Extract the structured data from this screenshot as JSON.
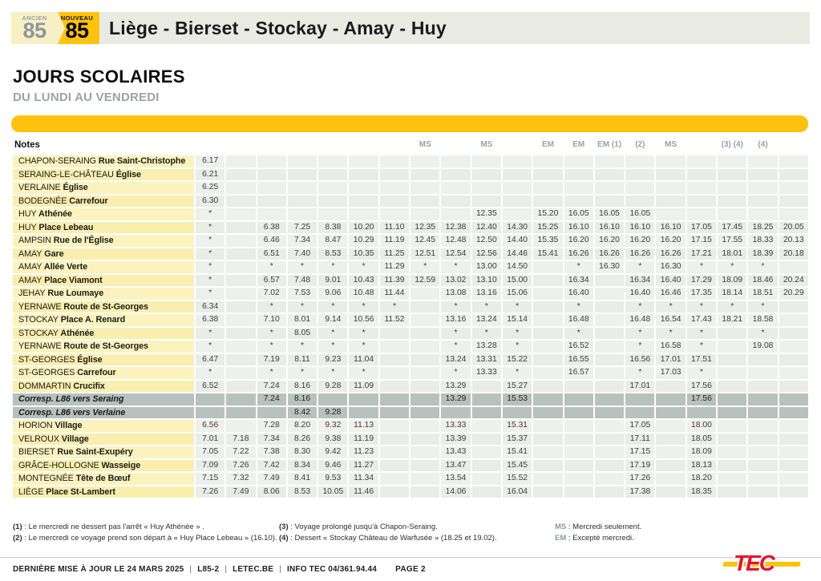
{
  "header": {
    "old_line": {
      "label": "ANCIEN",
      "number": "85"
    },
    "new_line": {
      "label": "NOUVEAU",
      "number": "85"
    },
    "route_title": "Liège - Bierset - Stockay - Amay - Huy"
  },
  "section": {
    "title": "JOURS SCOLAIRES",
    "subtitle": "DU LUNDI AU VENDREDI"
  },
  "colors": {
    "accent_yellow": "#FFC20E",
    "logo_red": "#E8112D",
    "stop_column_yellow": "#FBF1B8",
    "time_cell_gray": "#EDF0EC",
    "corresp_gray": "#B7C1BD"
  },
  "table": {
    "notes_label": "Notes",
    "column_notes": [
      "",
      "",
      "",
      "",
      "",
      "",
      "",
      "MS",
      "",
      "MS",
      "",
      "EM",
      "EM",
      "EM (1)",
      "(2)",
      "MS",
      "",
      "(3) (4)",
      "(4)",
      ""
    ],
    "rows": [
      {
        "city": "CHAPON-SERAING",
        "stop": "Rue Saint-Christophe",
        "cells": [
          "6.17",
          "",
          "",
          "",
          "",
          "",
          "",
          "",
          "",
          "",
          "",
          "",
          "",
          "",
          "",
          "",
          "",
          "",
          "",
          ""
        ]
      },
      {
        "city": "SERAING-LE-CHÂTEAU",
        "stop": "Église",
        "cells": [
          "6.21",
          "",
          "",
          "",
          "",
          "",
          "",
          "",
          "",
          "",
          "",
          "",
          "",
          "",
          "",
          "",
          "",
          "",
          "",
          ""
        ]
      },
      {
        "city": "VERLAINE",
        "stop": "Église",
        "cells": [
          "6.25",
          "",
          "",
          "",
          "",
          "",
          "",
          "",
          "",
          "",
          "",
          "",
          "",
          "",
          "",
          "",
          "",
          "",
          "",
          ""
        ]
      },
      {
        "city": "BODEGNÉE",
        "stop": "Carrefour",
        "cells": [
          "6.30",
          "",
          "",
          "",
          "",
          "",
          "",
          "",
          "",
          "",
          "",
          "",
          "",
          "",
          "",
          "",
          "",
          "",
          "",
          ""
        ]
      },
      {
        "city": "HUY",
        "stop": "Athénée",
        "cells": [
          "*",
          "",
          "",
          "",
          "",
          "",
          "",
          "",
          "",
          "12.35",
          "",
          "15.20",
          "16.05",
          "16.05",
          "16.05",
          "",
          "",
          "",
          "",
          ""
        ]
      },
      {
        "city": "HUY",
        "stop": "Place Lebeau",
        "cells": [
          "*",
          "",
          "6.38",
          "7.25",
          "8.38",
          "10.20",
          "11.10",
          "12.35",
          "12.38",
          "12.40",
          "14.30",
          "15.25",
          "16.10",
          "16.10",
          "16.10",
          "16.10",
          "17.05",
          "17.45",
          "18.25",
          "20.05"
        ]
      },
      {
        "city": "AMPSIN",
        "stop": "Rue de l'Église",
        "cells": [
          "*",
          "",
          "6.46",
          "7.34",
          "8.47",
          "10.29",
          "11.19",
          "12.45",
          "12.48",
          "12.50",
          "14.40",
          "15.35",
          "16.20",
          "16.20",
          "16.20",
          "16.20",
          "17.15",
          "17.55",
          "18.33",
          "20.13"
        ]
      },
      {
        "city": "AMAY",
        "stop": "Gare",
        "cells": [
          "*",
          "",
          "6.51",
          "7.40",
          "8.53",
          "10.35",
          "11.25",
          "12.51",
          "12.54",
          "12.56",
          "14.46",
          "15.41",
          "16.26",
          "16.26",
          "16.26",
          "16.26",
          "17.21",
          "18.01",
          "18.39",
          "20.18"
        ]
      },
      {
        "city": "AMAY",
        "stop": "Allée Verte",
        "cells": [
          "*",
          "",
          "*",
          "*",
          "*",
          "*",
          "11.29",
          "*",
          "*",
          "13.00",
          "14.50",
          "",
          "*",
          "16.30",
          "*",
          "16.30",
          "*",
          "*",
          "*",
          ""
        ]
      },
      {
        "city": "AMAY",
        "stop": "Place Viamont",
        "cells": [
          "*",
          "",
          "6.57",
          "7.48",
          "9.01",
          "10.43",
          "11.39",
          "12.59",
          "13.02",
          "13.10",
          "15.00",
          "",
          "16.34",
          "",
          "16.34",
          "16.40",
          "17.29",
          "18.09",
          "18.46",
          "20.24"
        ]
      },
      {
        "city": "JEHAY",
        "stop": "Rue Loumaye",
        "cells": [
          "*",
          "",
          "7.02",
          "7.53",
          "9.06",
          "10.48",
          "11.44",
          "",
          "13.08",
          "13.16",
          "15.06",
          "",
          "16.40",
          "",
          "16.40",
          "16.46",
          "17.35",
          "18.14",
          "18.51",
          "20.29"
        ]
      },
      {
        "city": "YERNAWE",
        "stop": "Route de St-Georges",
        "cells": [
          "6.34",
          "",
          "*",
          "*",
          "*",
          "*",
          "*",
          "",
          "*",
          "*",
          "*",
          "",
          "*",
          "",
          "*",
          "*",
          "*",
          "*",
          "*",
          ""
        ]
      },
      {
        "city": "STOCKAY",
        "stop": "Place A. Renard",
        "cells": [
          "6.38",
          "",
          "7.10",
          "8.01",
          "9.14",
          "10.56",
          "11.52",
          "",
          "13.16",
          "13.24",
          "15.14",
          "",
          "16.48",
          "",
          "16.48",
          "16.54",
          "17.43",
          "18.21",
          "18.58",
          ""
        ]
      },
      {
        "city": "STOCKAY",
        "stop": "Athénée",
        "cells": [
          "*",
          "",
          "*",
          "8.05",
          "*",
          "*",
          "",
          "",
          "*",
          "*",
          "*",
          "",
          "*",
          "",
          "*",
          "*",
          "*",
          "",
          "*",
          ""
        ]
      },
      {
        "city": "YERNAWE",
        "stop": "Route de St-Georges",
        "cells": [
          "*",
          "",
          "*",
          "*",
          "*",
          "*",
          "",
          "",
          "*",
          "13.28",
          "*",
          "",
          "16.52",
          "",
          "*",
          "16.58",
          "*",
          "",
          "19.08",
          ""
        ]
      },
      {
        "city": "ST-GEORGES",
        "stop": "Église",
        "cells": [
          "6.47",
          "",
          "7.19",
          "8.11",
          "9.23",
          "11.04",
          "",
          "",
          "13.24",
          "13.31",
          "15.22",
          "",
          "16.55",
          "",
          "16.56",
          "17.01",
          "17.51",
          "",
          "",
          ""
        ]
      },
      {
        "city": "ST-GEORGES",
        "stop": "Carrefour",
        "cells": [
          "*",
          "",
          "*",
          "*",
          "*",
          "*",
          "",
          "",
          "*",
          "13.33",
          "*",
          "",
          "16.57",
          "",
          "*",
          "17.03",
          "*",
          "",
          "",
          ""
        ]
      },
      {
        "city": "DOMMARTIN",
        "stop": "Crucifix",
        "cells": [
          "6.52",
          "",
          "7.24",
          "8.16",
          "9.28",
          "11.09",
          "",
          "",
          "13.29",
          "",
          "15.27",
          "",
          "",
          "",
          "17.01",
          "",
          "17.56",
          "",
          "",
          ""
        ]
      },
      {
        "type": "corresp",
        "label": "Corresp. L86 vers Seraing",
        "cells": [
          "",
          "",
          "7.24",
          "8.16",
          "",
          "",
          "",
          "",
          "13.29",
          "",
          "15.53",
          "",
          "",
          "",
          "",
          "",
          "17.56",
          "",
          "",
          ""
        ]
      },
      {
        "type": "corresp",
        "label": "Corresp. L86 vers Verlaine",
        "cells": [
          "",
          "",
          "",
          "8.42",
          "9.28",
          "",
          "",
          "",
          "",
          "",
          "",
          "",
          "",
          "",
          "",
          "",
          "",
          "",
          "",
          ""
        ]
      },
      {
        "city": "HORION",
        "stop": "Village",
        "cells": [
          "6.56",
          "",
          "7.28",
          "8.20",
          "9.32",
          "11.13",
          "",
          "",
          "13.33",
          "",
          "15.31",
          "",
          "",
          "",
          "17.05",
          "",
          "18.00",
          "",
          "",
          ""
        ]
      },
      {
        "city": "VELROUX",
        "stop": "Village",
        "cells": [
          "7.01",
          "7.18",
          "7.34",
          "8.26",
          "9.38",
          "11.19",
          "",
          "",
          "13.39",
          "",
          "15.37",
          "",
          "",
          "",
          "17.11",
          "",
          "18.05",
          "",
          "",
          ""
        ]
      },
      {
        "city": "BIERSET",
        "stop": "Rue Saint-Exupéry",
        "cells": [
          "7.05",
          "7.22",
          "7.38",
          "8.30",
          "9.42",
          "11.23",
          "",
          "",
          "13.43",
          "",
          "15.41",
          "",
          "",
          "",
          "17.15",
          "",
          "18.09",
          "",
          "",
          ""
        ]
      },
      {
        "city": "GRÂCE-HOLLOGNE",
        "stop": "Wasseige",
        "cells": [
          "7.09",
          "7.26",
          "7.42",
          "8.34",
          "9.46",
          "11.27",
          "",
          "",
          "13.47",
          "",
          "15.45",
          "",
          "",
          "",
          "17.19",
          "",
          "18.13",
          "",
          "",
          ""
        ]
      },
      {
        "city": "MONTEGNÉE",
        "stop": "Tête de Bœuf",
        "cells": [
          "7.15",
          "7.32",
          "7.49",
          "8.41",
          "9.53",
          "11.34",
          "",
          "",
          "13.54",
          "",
          "15.52",
          "",
          "",
          "",
          "17.26",
          "",
          "18.20",
          "",
          "",
          ""
        ]
      },
      {
        "city": "LIÈGE",
        "stop": "Place St-Lambert",
        "cells": [
          "7.26",
          "7.49",
          "8.06",
          "8.53",
          "10.05",
          "11.46",
          "",
          "",
          "14.06",
          "",
          "16.04",
          "",
          "",
          "",
          "17.38",
          "",
          "18.35",
          "",
          "",
          ""
        ]
      }
    ]
  },
  "footnotes": {
    "col1": [
      {
        "key": "(1)",
        "text": " : Le mercredi ne dessert pas l'arrêt « Huy Athénée » ."
      },
      {
        "key": "(2)",
        "text": " : Le mercredi ce voyage prend son départ à « Huy Place Lebeau »  (16.10)."
      }
    ],
    "col2": [
      {
        "key": "(3)",
        "text": " : Voyage prolongé jusqu'à Chapon-Seraing."
      },
      {
        "key": "(4)",
        "text": " : Dessert « Stockay Château de Warfusée »  (18.25 et 19.02)."
      }
    ],
    "col3": [
      {
        "key": "MS",
        "text": " : Mercredi seulement."
      },
      {
        "key": "EM",
        "text": " : Excepté mercredi."
      }
    ]
  },
  "footer": {
    "segments": [
      "DERNIÈRE MISE À JOUR LE 24 MARS 2025",
      "L85-2",
      "LETEC.BE",
      "INFO TEC 04/361.94.44"
    ],
    "page": "PAGE 2",
    "logo": "TEC"
  }
}
